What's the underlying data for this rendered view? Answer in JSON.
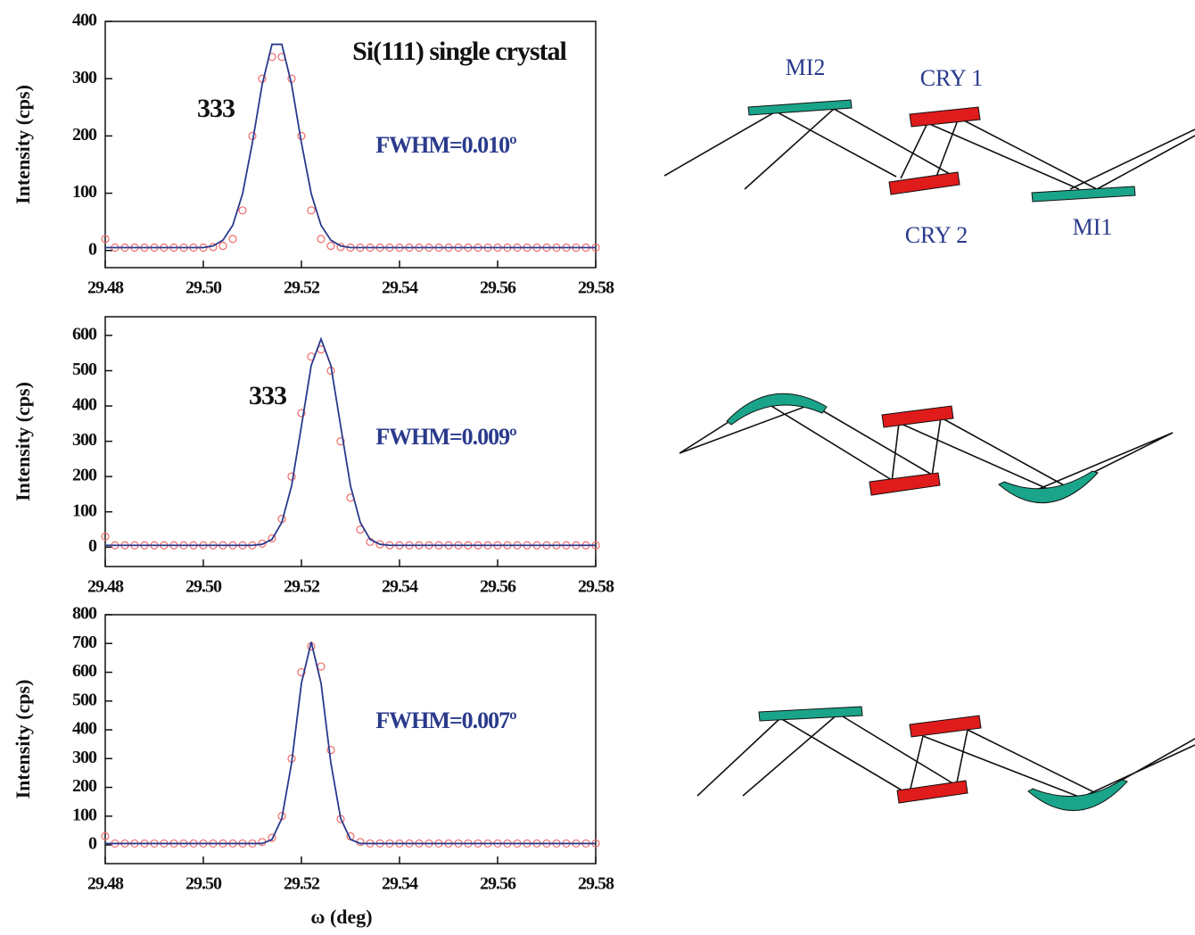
{
  "chart_data": [
    {
      "type": "line",
      "y_label": "Intensity (cps)",
      "annotations": [
        "Si(111) single crystal",
        "333",
        "FWHM=0.010º"
      ],
      "x": [
        29.48,
        29.482,
        29.484,
        29.486,
        29.488,
        29.49,
        29.492,
        29.494,
        29.496,
        29.498,
        29.5,
        29.502,
        29.504,
        29.506,
        29.508,
        29.51,
        29.512,
        29.514,
        29.516,
        29.518,
        29.52,
        29.522,
        29.524,
        29.526,
        29.528,
        29.53,
        29.532,
        29.534,
        29.536,
        29.538,
        29.54,
        29.542,
        29.544,
        29.546,
        29.548,
        29.55,
        29.552,
        29.554,
        29.556,
        29.558,
        29.56,
        29.562,
        29.564,
        29.566,
        29.568,
        29.57,
        29.572,
        29.574,
        29.576,
        29.578,
        29.58
      ],
      "series": [
        {
          "color": "#ee6a6a",
          "marker": "circle",
          "values": [
            20,
            5,
            5,
            5,
            5,
            5,
            5,
            5,
            5,
            5,
            5,
            6,
            8,
            20,
            70,
            200,
            300,
            338,
            338,
            300,
            200,
            70,
            20,
            8,
            6,
            5,
            5,
            5,
            5,
            5,
            5,
            5,
            5,
            5,
            5,
            5,
            5,
            5,
            5,
            5,
            5,
            5,
            5,
            5,
            5,
            5,
            5,
            5,
            5,
            5,
            5
          ]
        },
        {
          "color": "#2a3a8c",
          "marker": "none",
          "values": [
            5,
            5,
            5,
            5,
            5,
            5,
            5,
            5,
            5,
            5,
            5,
            8,
            18,
            44,
            99,
            188,
            290,
            360,
            360,
            290,
            188,
            99,
            44,
            18,
            8,
            5,
            5,
            5,
            5,
            5,
            5,
            5,
            5,
            5,
            5,
            5,
            5,
            5,
            5,
            5,
            5,
            5,
            5,
            5,
            5,
            5,
            5,
            5,
            5,
            5,
            5
          ]
        }
      ],
      "xlim": [
        29.48,
        29.58
      ],
      "xticks": [
        29.48,
        {
          "value": 29.5,
          "label": "29.50"
        },
        29.52,
        29.54,
        29.56,
        29.58
      ],
      "ylim": [
        -30,
        400
      ],
      "yticks": [
        0,
        100,
        200,
        300,
        400
      ]
    },
    {
      "type": "line",
      "y_label": "Intensity (cps)",
      "annotations": [
        "333",
        "FWHM=0.009º"
      ],
      "x": [
        29.48,
        29.482,
        29.484,
        29.486,
        29.488,
        29.49,
        29.492,
        29.494,
        29.496,
        29.498,
        29.5,
        29.502,
        29.504,
        29.506,
        29.508,
        29.51,
        29.512,
        29.514,
        29.516,
        29.518,
        29.52,
        29.522,
        29.524,
        29.526,
        29.528,
        29.53,
        29.532,
        29.534,
        29.536,
        29.538,
        29.54,
        29.542,
        29.544,
        29.546,
        29.548,
        29.55,
        29.552,
        29.554,
        29.556,
        29.558,
        29.56,
        29.562,
        29.564,
        29.566,
        29.568,
        29.57,
        29.572,
        29.574,
        29.576,
        29.578,
        29.58
      ],
      "series": [
        {
          "color": "#ee6a6a",
          "marker": "circle",
          "values": [
            30,
            5,
            5,
            5,
            5,
            5,
            5,
            5,
            5,
            5,
            5,
            5,
            5,
            5,
            5,
            5,
            10,
            25,
            80,
            200,
            380,
            540,
            560,
            500,
            300,
            140,
            50,
            15,
            8,
            5,
            5,
            5,
            5,
            5,
            5,
            5,
            5,
            5,
            5,
            5,
            5,
            5,
            5,
            5,
            5,
            5,
            5,
            5,
            5,
            5,
            5
          ]
        },
        {
          "color": "#2a3a8c",
          "marker": "none",
          "values": [
            5,
            5,
            5,
            5,
            5,
            5,
            5,
            5,
            5,
            5,
            5,
            5,
            5,
            5,
            5,
            5,
            8,
            22,
            70,
            174,
            343,
            515,
            590,
            515,
            343,
            174,
            70,
            22,
            8,
            5,
            5,
            5,
            5,
            5,
            5,
            5,
            5,
            5,
            5,
            5,
            5,
            5,
            5,
            5,
            5,
            5,
            5,
            5,
            5,
            5,
            5
          ]
        }
      ],
      "xlim": [
        29.48,
        29.58
      ],
      "xticks": [
        29.48,
        {
          "value": 29.5,
          "label": "29.50"
        },
        29.52,
        29.54,
        29.56,
        29.58
      ],
      "ylim": [
        -55,
        653
      ],
      "yticks": [
        0,
        100,
        200,
        300,
        400,
        500,
        600
      ]
    },
    {
      "type": "line",
      "y_label": "Intensity (cps)",
      "x_label": "ω (deg)",
      "annotations": [
        "FWHM=0.007º"
      ],
      "x": [
        29.48,
        29.482,
        29.484,
        29.486,
        29.488,
        29.49,
        29.492,
        29.494,
        29.496,
        29.498,
        29.5,
        29.502,
        29.504,
        29.506,
        29.508,
        29.51,
        29.512,
        29.514,
        29.516,
        29.518,
        29.52,
        29.522,
        29.524,
        29.526,
        29.528,
        29.53,
        29.532,
        29.534,
        29.536,
        29.538,
        29.54,
        29.542,
        29.544,
        29.546,
        29.548,
        29.55,
        29.552,
        29.554,
        29.556,
        29.558,
        29.56,
        29.562,
        29.564,
        29.566,
        29.568,
        29.57,
        29.572,
        29.574,
        29.576,
        29.578,
        29.58
      ],
      "series": [
        {
          "color": "#ee6a6a",
          "marker": "circle",
          "values": [
            30,
            5,
            5,
            5,
            5,
            5,
            5,
            5,
            5,
            5,
            5,
            5,
            5,
            5,
            5,
            5,
            10,
            25,
            100,
            300,
            600,
            690,
            620,
            330,
            90,
            30,
            10,
            5,
            5,
            5,
            5,
            5,
            5,
            5,
            5,
            5,
            5,
            5,
            5,
            5,
            5,
            5,
            5,
            5,
            5,
            5,
            5,
            5,
            5,
            5,
            5
          ]
        },
        {
          "color": "#2a3a8c",
          "marker": "none",
          "values": [
            5,
            5,
            5,
            5,
            5,
            5,
            5,
            5,
            5,
            5,
            5,
            5,
            5,
            5,
            5,
            5,
            5,
            19,
            92,
            285,
            562,
            705,
            562,
            285,
            92,
            19,
            5,
            5,
            5,
            5,
            5,
            5,
            5,
            5,
            5,
            5,
            5,
            5,
            5,
            5,
            5,
            5,
            5,
            5,
            5,
            5,
            5,
            5,
            5,
            5,
            5
          ]
        }
      ],
      "xlim": [
        29.48,
        29.58
      ],
      "xticks": [
        29.48,
        {
          "value": 29.5,
          "label": "29.50"
        },
        29.52,
        29.54,
        29.56,
        29.58
      ],
      "ylim": [
        -65,
        800
      ],
      "yticks": [
        0,
        100,
        200,
        300,
        400,
        500,
        600,
        700,
        800
      ]
    }
  ],
  "diagram": {
    "labels": {
      "mi2": "MI2",
      "cry1": "CRY 1",
      "cry2": "CRY 2",
      "mi1": "MI1"
    }
  }
}
